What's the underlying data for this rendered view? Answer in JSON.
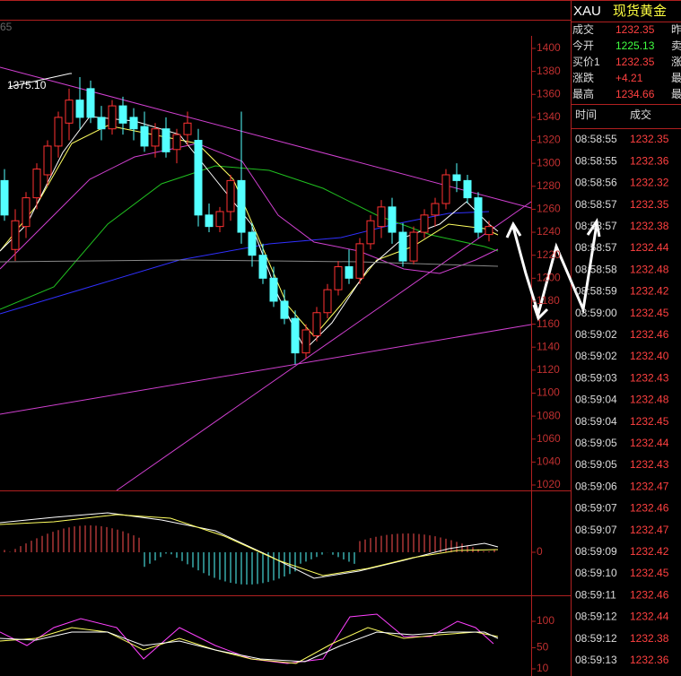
{
  "chart": {
    "corner_label": "65",
    "annotation": "1375.10",
    "price_ticks": [
      1400,
      1380,
      1360,
      1340,
      1320,
      1300,
      1280,
      1260,
      1240,
      1220,
      1200,
      1180,
      1160,
      1140,
      1120,
      1100,
      1080,
      1060,
      1040,
      1020
    ],
    "macd_ticks": [
      0
    ],
    "kdj_ticks": [
      100,
      50,
      10
    ],
    "candles": [
      [
        1285,
        1295,
        1250,
        1255
      ],
      [
        1225,
        1260,
        1215,
        1250
      ],
      [
        1245,
        1275,
        1235,
        1270
      ],
      [
        1270,
        1300,
        1260,
        1295
      ],
      [
        1290,
        1320,
        1280,
        1315
      ],
      [
        1315,
        1345,
        1305,
        1340
      ],
      [
        1335,
        1365,
        1320,
        1355
      ],
      [
        1355,
        1375,
        1330,
        1340
      ],
      [
        1365,
        1372,
        1335,
        1340
      ],
      [
        1340,
        1350,
        1320,
        1330
      ],
      [
        1330,
        1355,
        1325,
        1350
      ],
      [
        1350,
        1358,
        1325,
        1335
      ],
      [
        1340,
        1348,
        1320,
        1330
      ],
      [
        1332,
        1345,
        1310,
        1315
      ],
      [
        1315,
        1335,
        1305,
        1330
      ],
      [
        1330,
        1340,
        1305,
        1310
      ],
      [
        1312,
        1330,
        1300,
        1325
      ],
      [
        1325,
        1345,
        1315,
        1335
      ],
      [
        1320,
        1330,
        1245,
        1255
      ],
      [
        1255,
        1265,
        1240,
        1245
      ],
      [
        1245,
        1262,
        1240,
        1258
      ],
      [
        1258,
        1290,
        1250,
        1285
      ],
      [
        1285,
        1345,
        1230,
        1240
      ],
      [
        1240,
        1248,
        1210,
        1220
      ],
      [
        1220,
        1230,
        1195,
        1200
      ],
      [
        1200,
        1210,
        1175,
        1180
      ],
      [
        1180,
        1190,
        1160,
        1165
      ],
      [
        1165,
        1172,
        1125,
        1135
      ],
      [
        1135,
        1160,
        1130,
        1155
      ],
      [
        1150,
        1175,
        1145,
        1170
      ],
      [
        1170,
        1195,
        1165,
        1190
      ],
      [
        1190,
        1215,
        1185,
        1210
      ],
      [
        1210,
        1225,
        1195,
        1200
      ],
      [
        1200,
        1235,
        1195,
        1230
      ],
      [
        1230,
        1255,
        1225,
        1250
      ],
      [
        1245,
        1268,
        1235,
        1262
      ],
      [
        1262,
        1270,
        1230,
        1240
      ],
      [
        1240,
        1248,
        1210,
        1215
      ],
      [
        1215,
        1245,
        1212,
        1240
      ],
      [
        1240,
        1260,
        1235,
        1255
      ],
      [
        1255,
        1270,
        1245,
        1265
      ],
      [
        1265,
        1295,
        1260,
        1290
      ],
      [
        1290,
        1300,
        1275,
        1285
      ],
      [
        1285,
        1290,
        1265,
        1270
      ],
      [
        1270,
        1275,
        1235,
        1240
      ],
      [
        1238,
        1250,
        1232,
        1245
      ]
    ]
  },
  "quote": {
    "code": "XAU",
    "name": "现货黄金",
    "rows": [
      [
        "成交",
        "1232.35",
        "昨"
      ],
      [
        "今开",
        "1225.13",
        "卖"
      ],
      [
        "买价1",
        "1232.35",
        "涨"
      ],
      [
        "涨跌",
        "+4.21",
        "最"
      ],
      [
        "最高",
        "1234.66",
        "最"
      ]
    ]
  },
  "trades": {
    "header": [
      "时间",
      "成交"
    ],
    "rows": [
      [
        "08:58:55",
        "1232.35"
      ],
      [
        "08:58:55",
        "1232.36"
      ],
      [
        "08:58:56",
        "1232.32"
      ],
      [
        "08:58:57",
        "1232.35"
      ],
      [
        "08:58:57",
        "1232.38"
      ],
      [
        "08:58:57",
        "1232.44"
      ],
      [
        "08:58:58",
        "1232.48"
      ],
      [
        "08:58:59",
        "1232.42"
      ],
      [
        "08:59:00",
        "1232.45"
      ],
      [
        "08:59:02",
        "1232.46"
      ],
      [
        "08:59:02",
        "1232.40"
      ],
      [
        "08:59:03",
        "1232.43"
      ],
      [
        "08:59:04",
        "1232.48"
      ],
      [
        "08:59:04",
        "1232.45"
      ],
      [
        "08:59:05",
        "1232.44"
      ],
      [
        "08:59:05",
        "1232.43"
      ],
      [
        "08:59:06",
        "1232.47"
      ],
      [
        "08:59:07",
        "1232.46"
      ],
      [
        "08:59:07",
        "1232.47"
      ],
      [
        "08:59:09",
        "1232.42"
      ],
      [
        "08:59:10",
        "1232.45"
      ],
      [
        "08:59:11",
        "1232.46"
      ],
      [
        "08:59:12",
        "1232.44"
      ],
      [
        "08:59:12",
        "1232.38"
      ],
      [
        "08:59:13",
        "1232.36"
      ]
    ]
  }
}
